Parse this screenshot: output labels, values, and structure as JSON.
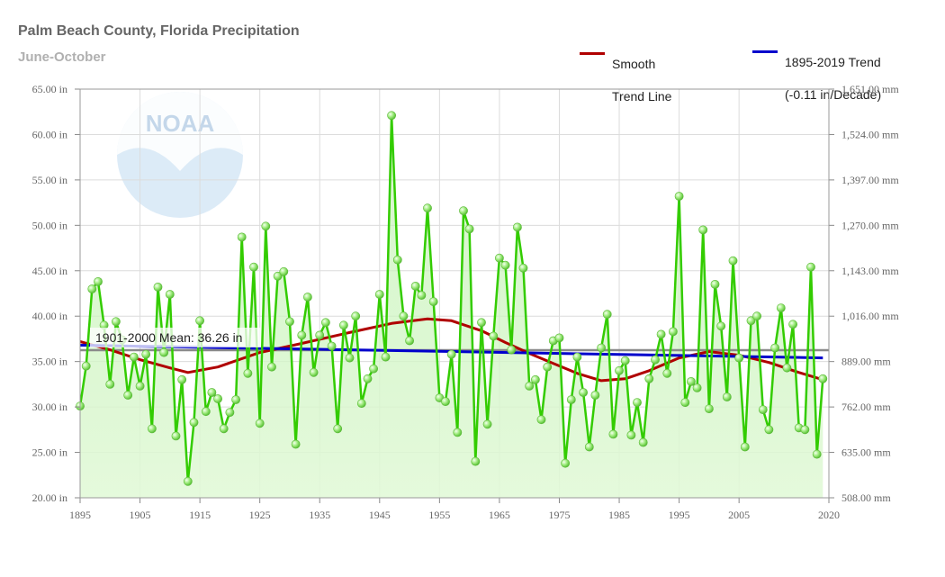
{
  "header": {
    "title": "Palm Beach County, Florida Precipitation",
    "subtitle": "June-October"
  },
  "legend": {
    "smooth": {
      "line1": "Smooth",
      "line2": "Trend Line",
      "color": "#b00000"
    },
    "trend": {
      "line1": "1895-2019 Trend",
      "line2": "(-0.11 in/Decade)",
      "color": "#0000cc"
    }
  },
  "logo": {
    "text": "NOAA"
  },
  "chart_data": {
    "type": "line",
    "title": "Palm Beach County, Florida Precipitation",
    "subtitle": "June-October",
    "x_ticks": [
      "1895",
      "1905",
      "1915",
      "1925",
      "1935",
      "1945",
      "1955",
      "1965",
      "1975",
      "1985",
      "1995",
      "2005",
      "2020"
    ],
    "y_ticks_left": [
      "20.00 in",
      "25.00 in",
      "30.00 in",
      "35.00 in",
      "40.00 in",
      "45.00 in",
      "50.00 in",
      "55.00 in",
      "60.00 in",
      "65.00 in"
    ],
    "y_ticks_right": [
      "508.00 mm",
      "635.00 mm",
      "762.00 mm",
      "889.00 mm",
      "1,016.00 mm",
      "1,143.00 mm",
      "1,270.00 mm",
      "1,397.00 mm",
      "1,524.00 mm",
      "1,651.00 mm"
    ],
    "xlim": [
      1895,
      2020
    ],
    "ylim": [
      20,
      65
    ],
    "mean_label": "1901-2000 Mean: 36.26 in",
    "mean_value": 36.26,
    "series": [
      {
        "name": "Precipitation",
        "color": "#33cc00",
        "start_year": 1895,
        "values": [
          30.1,
          34.5,
          43.0,
          43.8,
          39.0,
          32.5,
          39.4,
          37.4,
          31.3,
          35.5,
          32.3,
          35.8,
          27.6,
          43.2,
          36.0,
          42.4,
          26.8,
          33.0,
          21.8,
          28.3,
          39.5,
          29.5,
          31.6,
          30.9,
          27.6,
          29.4,
          30.8,
          48.7,
          33.7,
          45.4,
          28.2,
          49.9,
          34.4,
          44.4,
          44.9,
          39.4,
          25.9,
          37.9,
          42.1,
          33.8,
          37.9,
          39.3,
          36.7,
          27.6,
          39.0,
          35.4,
          40.0,
          30.4,
          33.1,
          34.2,
          42.4,
          35.5,
          62.1,
          46.2,
          40.0,
          37.3,
          43.3,
          42.3,
          51.9,
          41.6,
          31.0,
          30.6,
          35.8,
          27.2,
          51.6,
          49.6,
          24.0,
          39.3,
          28.1,
          37.8,
          46.4,
          45.6,
          36.3,
          49.8,
          45.3,
          32.3,
          33.0,
          28.6,
          34.4,
          37.3,
          37.6,
          23.8,
          30.8,
          35.5,
          31.6,
          25.6,
          31.3,
          36.5,
          40.2,
          27.0,
          34.0,
          35.1,
          26.9,
          30.5,
          26.1,
          33.1,
          35.2,
          38.0,
          33.7,
          38.3,
          53.2,
          30.5,
          32.8,
          32.1,
          49.5,
          29.8,
          43.5,
          38.9,
          31.1,
          46.1,
          35.4,
          25.6,
          39.5,
          40.0,
          29.7,
          27.5,
          36.5,
          40.9,
          34.3,
          39.1,
          27.7,
          27.5,
          45.4,
          24.8,
          33.1
        ]
      },
      {
        "name": "Smooth Trend Line",
        "color": "#b00000",
        "x": [
          1895,
          1900,
          1905,
          1910,
          1913,
          1918,
          1925,
          1932,
          1940,
          1947,
          1953,
          1957,
          1962,
          1966,
          1970,
          1974,
          1978,
          1982,
          1986,
          1990,
          1995,
          2000,
          2005,
          2010,
          2015,
          2019
        ],
        "values": [
          37.2,
          36.3,
          35.2,
          34.3,
          33.8,
          34.4,
          36.0,
          37.0,
          38.2,
          39.2,
          39.7,
          39.5,
          38.4,
          37.1,
          35.9,
          34.8,
          33.7,
          32.9,
          33.1,
          34.0,
          35.4,
          36.1,
          35.7,
          34.9,
          33.8,
          33.0
        ]
      },
      {
        "name": "1895-2019 Trend",
        "color": "#0000cc",
        "x": [
          1895,
          2019
        ],
        "values": [
          36.8,
          35.4
        ]
      }
    ]
  }
}
